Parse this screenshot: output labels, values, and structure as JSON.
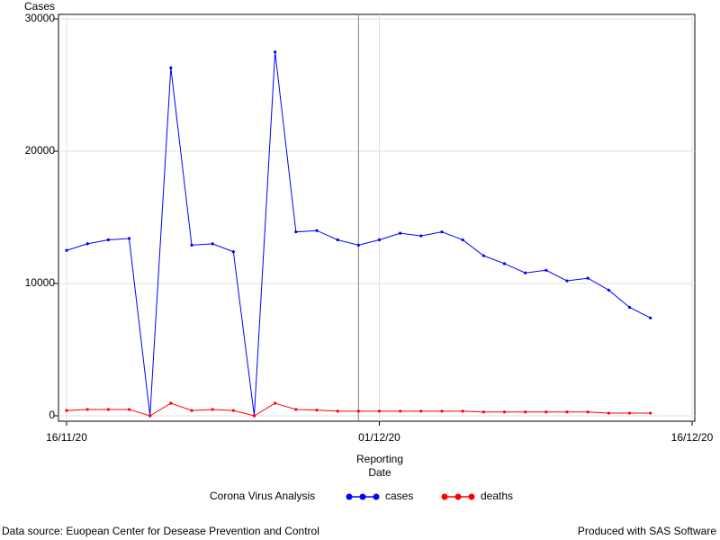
{
  "chart_data": {
    "type": "line",
    "y_label": "Cases",
    "x_label": "Reporting Date",
    "legend_title": "Corona Virus Analysis",
    "x": [
      "2020-11-16",
      "2020-11-17",
      "2020-11-18",
      "2020-11-19",
      "2020-11-20",
      "2020-11-21",
      "2020-11-22",
      "2020-11-23",
      "2020-11-24",
      "2020-11-25",
      "2020-11-26",
      "2020-11-27",
      "2020-11-28",
      "2020-11-29",
      "2020-11-30",
      "2020-12-01",
      "2020-12-02",
      "2020-12-03",
      "2020-12-04",
      "2020-12-05",
      "2020-12-06",
      "2020-12-07",
      "2020-12-08",
      "2020-12-09",
      "2020-12-10",
      "2020-12-11",
      "2020-12-12",
      "2020-12-13",
      "2020-12-14"
    ],
    "series": [
      {
        "name": "cases",
        "color": "#0000ff",
        "values": [
          12500,
          13000,
          13300,
          13400,
          0,
          26300,
          12900,
          13000,
          12400,
          0,
          27500,
          13900,
          14000,
          13300,
          12900,
          13300,
          13800,
          13600,
          13900,
          13300,
          12100,
          11500,
          10800,
          11000,
          10200,
          10400,
          9500,
          8200,
          7400
        ]
      },
      {
        "name": "deaths",
        "color": "#ff0000",
        "values": [
          400,
          480,
          480,
          480,
          0,
          950,
          400,
          480,
          400,
          0,
          950,
          480,
          430,
          350,
          350,
          350,
          350,
          350,
          350,
          350,
          290,
          290,
          290,
          290,
          290,
          290,
          200,
          200,
          200
        ]
      }
    ],
    "xlim": [
      "2020-11-16",
      "2020-12-16"
    ],
    "xticks": [
      {
        "value": "2020-11-16",
        "label": "16/11/20"
      },
      {
        "value": "2020-12-01",
        "label": "01/12/20"
      },
      {
        "value": "2020-12-16",
        "label": "16/12/20"
      }
    ],
    "ylim": [
      0,
      30000
    ],
    "yticks": [
      0,
      10000,
      20000,
      30000
    ],
    "grid": true,
    "reference_line": "2020-11-30",
    "footnote_left": "Data source: Euopean Center for Desease Prevention and Control",
    "footnote_right": "Produced with SAS Software"
  }
}
